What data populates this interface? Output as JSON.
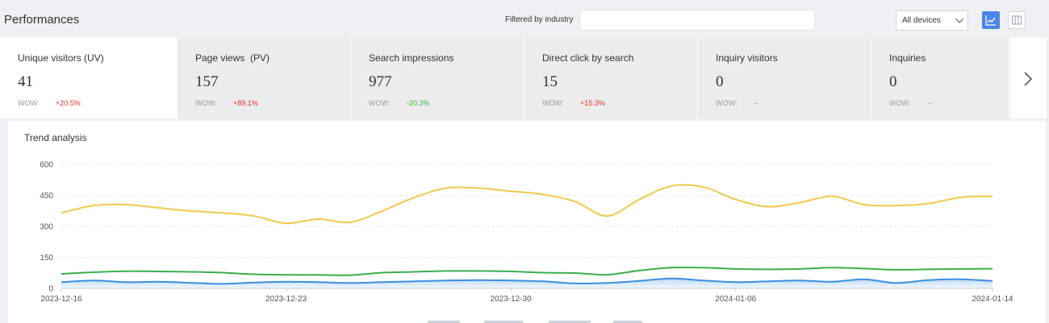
{
  "header": {
    "title": "Performances",
    "filter_label": "Filtered by industry",
    "filter_value": "",
    "device_select": "All devices"
  },
  "metrics": [
    {
      "label": "Unique visitors (UV)",
      "value": "41",
      "wow_label": "WOW:",
      "change": "+20.5%",
      "change_color": "#e0322c"
    },
    {
      "label": "Page views  (PV)",
      "value": "157",
      "wow_label": "WOW:",
      "change": "+89.1%",
      "change_color": "#e0322c"
    },
    {
      "label": "Search impressions",
      "value": "977",
      "wow_label": "WOW:",
      "change": "-20.3%",
      "change_color": "#3ab04a"
    },
    {
      "label": "Direct click by search",
      "value": "15",
      "wow_label": "WOW:",
      "change": "+15.3%",
      "change_color": "#e0322c"
    },
    {
      "label": "Inquiry visitors",
      "value": "0",
      "wow_label": "WOW:",
      "change": "--",
      "change_color": "#999999"
    },
    {
      "label": "Inquiries",
      "value": "0",
      "wow_label": "WOW:",
      "change": "--",
      "change_color": "#999999"
    }
  ],
  "icons": {
    "next": "chevron-right-icon",
    "line_view": "line-chart-icon",
    "table_view": "table-icon",
    "device_chevron": "chevron-down-icon"
  },
  "colors": {
    "accent": "#4a86e8",
    "series_yellow": "#f2c94c",
    "series_green": "#3ab04a",
    "series_blue": "#3b8fe0"
  },
  "trend": {
    "title": "Trend analysis",
    "chart_data": {
      "type": "line",
      "ylim": [
        0,
        600
      ],
      "y_ticks": [
        0,
        150,
        300,
        450,
        600
      ],
      "x_tick_labels": [
        "2023-12-16",
        "2023-12-23",
        "2023-12-30",
        "2024-01-06",
        "2024-01-14"
      ],
      "x_tick_indices": [
        0,
        7,
        14,
        21,
        29
      ],
      "x": [
        "2023-12-16",
        "2023-12-17",
        "2023-12-18",
        "2023-12-19",
        "2023-12-20",
        "2023-12-21",
        "2023-12-22",
        "2023-12-23",
        "2023-12-24",
        "2023-12-25",
        "2023-12-26",
        "2023-12-27",
        "2023-12-28",
        "2023-12-29",
        "2023-12-30",
        "2023-12-31",
        "2024-01-01",
        "2024-01-02",
        "2024-01-03",
        "2024-01-04",
        "2024-01-05",
        "2024-01-06",
        "2024-01-07",
        "2024-01-08",
        "2024-01-09",
        "2024-01-10",
        "2024-01-11",
        "2024-01-12",
        "2024-01-13",
        "2024-01-14"
      ],
      "grid": true,
      "series": [
        {
          "color": "#f2c94c",
          "area": false,
          "values": [
            365,
            400,
            405,
            390,
            375,
            365,
            350,
            315,
            335,
            320,
            375,
            440,
            485,
            485,
            470,
            455,
            420,
            350,
            430,
            495,
            490,
            430,
            395,
            415,
            445,
            405,
            400,
            410,
            440,
            445
          ]
        },
        {
          "color": "#3ab04a",
          "area": false,
          "values": [
            70,
            78,
            83,
            82,
            80,
            76,
            68,
            66,
            65,
            64,
            76,
            80,
            84,
            84,
            82,
            76,
            74,
            66,
            86,
            100,
            100,
            94,
            92,
            94,
            100,
            96,
            90,
            92,
            94,
            95
          ]
        },
        {
          "color": "#3b8fe0",
          "area": true,
          "values": [
            30,
            38,
            30,
            32,
            27,
            22,
            28,
            32,
            30,
            26,
            30,
            34,
            38,
            40,
            38,
            34,
            24,
            26,
            36,
            48,
            38,
            30,
            34,
            38,
            32,
            44,
            26,
            40,
            44,
            36
          ]
        }
      ]
    }
  }
}
